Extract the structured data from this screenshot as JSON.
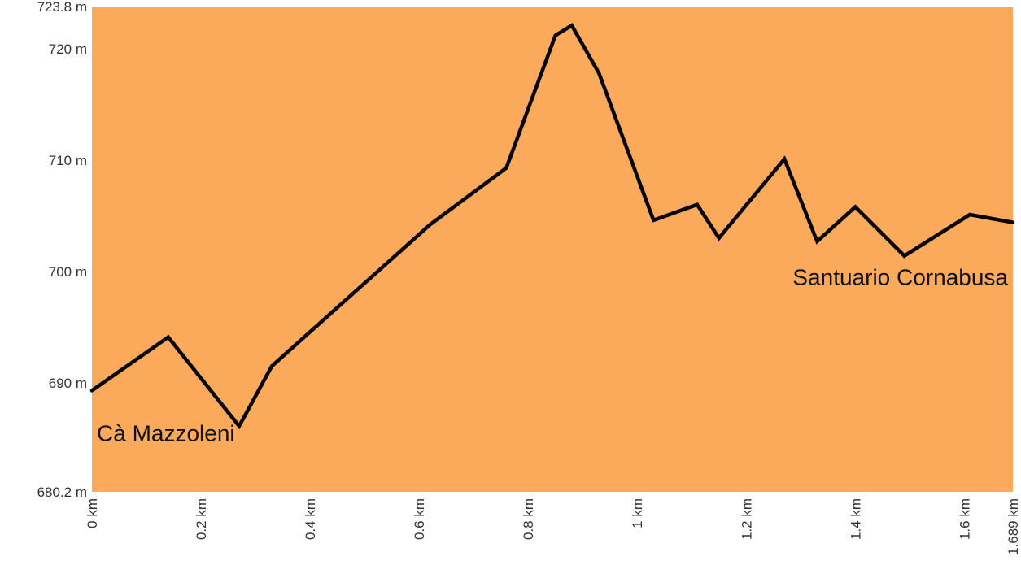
{
  "chart_data": {
    "type": "area",
    "title": "",
    "xlabel": "",
    "ylabel": "",
    "xlim": [
      0,
      1.689
    ],
    "ylim": [
      680.2,
      723.8
    ],
    "grid": false,
    "legend": "none",
    "colors": {
      "plot_background": "#FBA95B",
      "line": "#000000"
    },
    "yticks": [
      {
        "value": 723.8,
        "label": "723.8 m"
      },
      {
        "value": 720,
        "label": "720 m"
      },
      {
        "value": 710,
        "label": "710 m"
      },
      {
        "value": 700,
        "label": "700 m"
      },
      {
        "value": 690,
        "label": "690 m"
      },
      {
        "value": 680.2,
        "label": "680.2 m"
      }
    ],
    "xticks": [
      {
        "value": 0,
        "label": "0 km"
      },
      {
        "value": 0.2,
        "label": "0.2 km"
      },
      {
        "value": 0.4,
        "label": "0.4 km"
      },
      {
        "value": 0.6,
        "label": "0.6 km"
      },
      {
        "value": 0.8,
        "label": "0.8 km"
      },
      {
        "value": 1,
        "label": "1 km"
      },
      {
        "value": 1.2,
        "label": "1.2 km"
      },
      {
        "value": 1.4,
        "label": "1.4 km"
      },
      {
        "value": 1.6,
        "label": "1.6 km"
      },
      {
        "value": 1.689,
        "label": "1.689 km"
      }
    ],
    "x": [
      0,
      0.14,
      0.27,
      0.33,
      0.62,
      0.76,
      0.85,
      0.88,
      0.93,
      1.03,
      1.11,
      1.15,
      1.27,
      1.33,
      1.4,
      1.49,
      1.61,
      1.689
    ],
    "y": [
      689.3,
      694.1,
      686.1,
      691.5,
      704.2,
      709.3,
      721.2,
      722.1,
      717.8,
      704.6,
      706.0,
      703.0,
      710.1,
      702.7,
      705.8,
      701.4,
      705.1,
      704.4
    ],
    "annotations": [
      {
        "text": "Cà Mazzoleni",
        "x": 0,
        "y": 685.5,
        "anchor": "start"
      },
      {
        "text": "Santuario Cornabusa",
        "x": 1.689,
        "y": 699.5,
        "anchor": "end"
      }
    ]
  }
}
